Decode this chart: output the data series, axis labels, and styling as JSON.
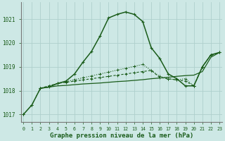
{
  "title": "Graphe pression niveau de la mer (hPa)",
  "yticks": [
    1017,
    1018,
    1019,
    1020,
    1021
  ],
  "ylim": [
    1016.7,
    1021.7
  ],
  "xlim": [
    -0.3,
    23.3
  ],
  "bg_color": "#cde8e5",
  "grid_color": "#aed0cc",
  "line_color": "#1a5c1a",
  "x_main": [
    0,
    1,
    2,
    3,
    4,
    5,
    6,
    7,
    8,
    9,
    10,
    11,
    12,
    13,
    14,
    15,
    16,
    17,
    18,
    19,
    20,
    21,
    22,
    23
  ],
  "y_main": [
    1017.0,
    1017.4,
    1018.1,
    1018.15,
    1018.3,
    1018.4,
    1018.7,
    1019.2,
    1019.65,
    1020.3,
    1021.05,
    1021.2,
    1021.3,
    1021.2,
    1020.9,
    1019.8,
    1019.35,
    1018.7,
    1018.5,
    1018.2,
    1018.2,
    1019.0,
    1019.5,
    1019.6
  ],
  "x_flat": [
    2,
    3,
    4,
    5,
    6,
    7,
    8,
    9,
    10,
    11,
    12,
    13,
    14,
    15,
    16,
    17,
    18,
    19,
    20,
    21,
    22,
    23
  ],
  "y_flat": [
    1018.1,
    1018.15,
    1018.2,
    1018.22,
    1018.25,
    1018.28,
    1018.3,
    1018.32,
    1018.35,
    1018.38,
    1018.4,
    1018.43,
    1018.46,
    1018.5,
    1018.53,
    1018.56,
    1018.6,
    1018.63,
    1018.65,
    1018.8,
    1019.4,
    1019.6
  ],
  "x_dash": [
    2,
    3,
    4,
    5,
    6,
    7,
    8,
    9,
    10,
    11,
    12,
    13,
    14,
    15,
    16,
    17,
    18,
    19,
    20,
    21,
    22,
    23
  ],
  "y_dash": [
    1018.1,
    1018.2,
    1018.3,
    1018.35,
    1018.4,
    1018.45,
    1018.5,
    1018.55,
    1018.6,
    1018.65,
    1018.7,
    1018.75,
    1018.8,
    1018.85,
    1018.55,
    1018.5,
    1018.45,
    1018.4,
    1018.2,
    1019.0,
    1019.5,
    1019.6
  ],
  "x_dot": [
    0,
    1,
    2,
    3,
    4,
    5,
    6,
    7,
    8,
    9,
    10,
    11,
    12,
    13,
    14,
    15,
    16,
    17,
    18,
    19,
    20,
    21,
    22,
    23
  ],
  "y_dot": [
    1017.0,
    1017.4,
    1018.1,
    1018.2,
    1018.3,
    1018.38,
    1018.46,
    1018.54,
    1018.62,
    1018.7,
    1018.78,
    1018.86,
    1018.94,
    1019.02,
    1019.1,
    1018.85,
    1018.6,
    1018.5,
    1018.45,
    1018.5,
    1018.2,
    1019.0,
    1019.5,
    1019.6
  ]
}
